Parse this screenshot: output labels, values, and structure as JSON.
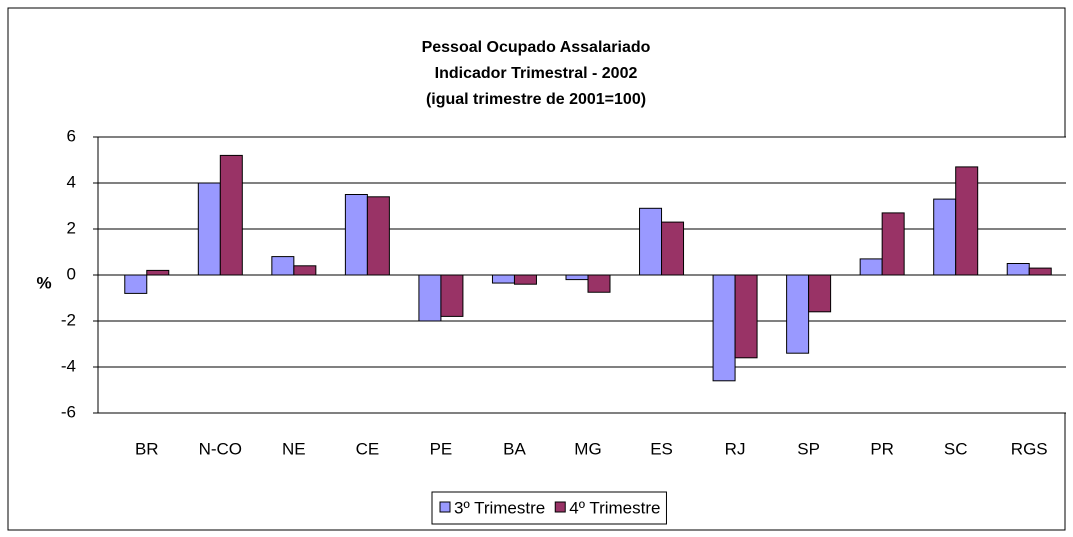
{
  "chart_data": {
    "type": "bar",
    "title": "Pessoal Ocupado Assalariado",
    "subtitle": "Indicador Trimestral - 2002",
    "note": "(igual trimestre de 2001=100)",
    "y_label": "%",
    "categories": [
      "BR",
      "N-CO",
      "NE",
      "CE",
      "PE",
      "BA",
      "MG",
      "ES",
      "RJ",
      "SP",
      "PR",
      "SC",
      "RGS"
    ],
    "series": [
      {
        "name": "3º Trimestre",
        "color": "#9999ff",
        "values": [
          -0.8,
          4.0,
          0.8,
          3.5,
          -2.0,
          -0.35,
          -0.2,
          2.9,
          -4.6,
          -3.4,
          0.7,
          3.3,
          0.5
        ]
      },
      {
        "name": "4º Trimestre",
        "color": "#993366",
        "values": [
          0.2,
          5.2,
          0.4,
          3.4,
          -1.8,
          -0.4,
          -0.75,
          2.3,
          -3.6,
          -1.6,
          2.7,
          4.7,
          0.3
        ]
      }
    ],
    "ylim": [
      -6,
      6
    ],
    "yticks": [
      -6,
      -4,
      -2,
      0,
      2,
      4,
      6
    ],
    "grid": true,
    "legend": "bottom"
  }
}
